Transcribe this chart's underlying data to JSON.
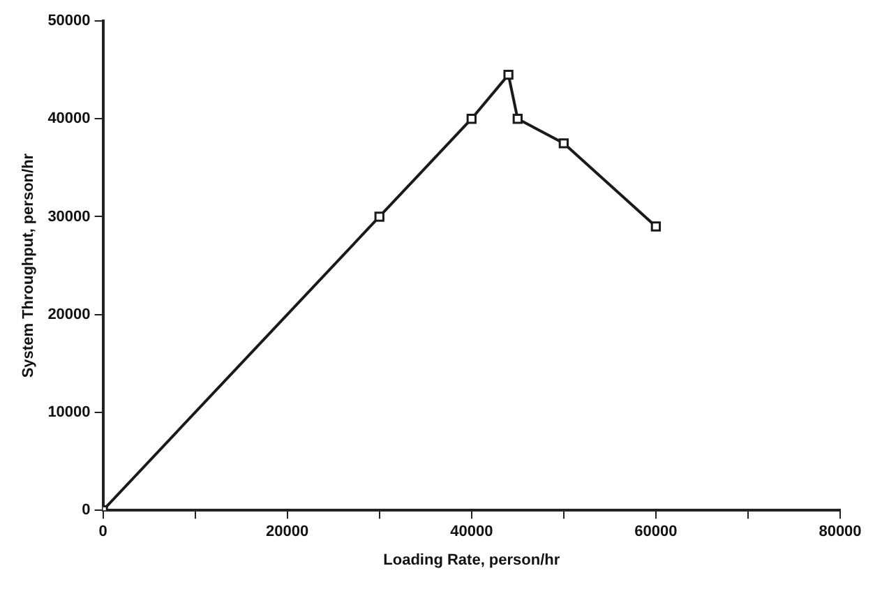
{
  "chart_data": {
    "type": "line",
    "xlabel": "Loading Rate, person/hr",
    "ylabel": "System Throughput, person/hr",
    "x": [
      0,
      30000,
      40000,
      44000,
      45000,
      50000,
      60000
    ],
    "series": [
      {
        "color": "#1a1a1a",
        "values": [
          0,
          30000,
          40000,
          44500,
          40000,
          37500,
          29000
        ]
      }
    ],
    "xlim": [
      0,
      80000
    ],
    "ylim": [
      0,
      50000
    ],
    "xticks": [
      0,
      {
        "value": 10000,
        "label": null
      },
      20000,
      {
        "value": 30000,
        "label": null
      },
      40000,
      {
        "value": 50000,
        "label": null
      },
      60000,
      {
        "value": 70000,
        "label": null
      },
      80000
    ],
    "yticks": [
      0,
      10000,
      20000,
      30000,
      40000,
      50000
    ],
    "grid": false,
    "legend": false,
    "marker": "square",
    "line_style": "solid"
  }
}
